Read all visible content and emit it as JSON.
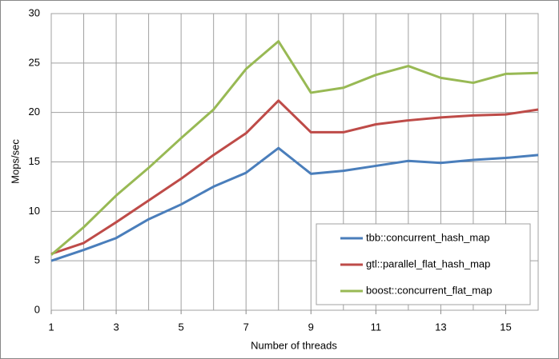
{
  "chart_data": {
    "type": "line",
    "x_label": "Number of threads",
    "y_label": "Mops/sec",
    "x": [
      1,
      2,
      3,
      4,
      5,
      6,
      7,
      8,
      9,
      10,
      11,
      12,
      13,
      14,
      15,
      16
    ],
    "series": [
      {
        "name": "tbb::concurrent_hash_map",
        "color": "#4a7ebb",
        "values": [
          5.0,
          6.1,
          7.3,
          9.2,
          10.7,
          12.5,
          13.9,
          16.4,
          13.8,
          14.1,
          14.6,
          15.1,
          14.9,
          15.2,
          15.4,
          15.7
        ]
      },
      {
        "name": "gtl::parallel_flat_hash_map",
        "color": "#be4b48",
        "values": [
          5.7,
          6.8,
          8.9,
          11.1,
          13.3,
          15.7,
          17.9,
          21.2,
          18.0,
          18.0,
          18.8,
          19.2,
          19.5,
          19.7,
          19.8,
          20.3
        ]
      },
      {
        "name": "boost::concurrent_flat_map",
        "color": "#98b954",
        "values": [
          5.6,
          8.4,
          11.6,
          14.4,
          17.4,
          20.3,
          24.4,
          27.2,
          22.0,
          22.5,
          23.8,
          24.7,
          23.5,
          23.0,
          23.9,
          24.0
        ]
      }
    ],
    "xlim": [
      1,
      16
    ],
    "xticks": [
      1,
      3,
      5,
      7,
      9,
      11,
      13,
      15
    ],
    "ylim": [
      0,
      30
    ],
    "yticks": [
      0,
      5,
      10,
      15,
      20,
      25,
      30
    ],
    "grid": true,
    "legend": "lower right"
  }
}
